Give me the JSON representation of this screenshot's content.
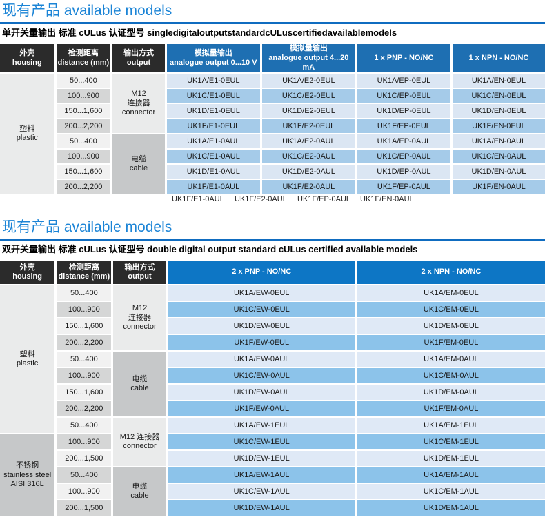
{
  "colors": {
    "accent": "#1b84d6",
    "rule": "#0f6cc0",
    "header_dark": "#2b2b2b",
    "table1_header_blue": "#1e6fb2",
    "table2_header_blue": "#0d76c5",
    "table1_row_light": "#dbe6f3",
    "table1_row_medium": "#a5cbe9",
    "table2_row_light": "#dfe9f6",
    "table2_row_medium": "#8cc3ea",
    "distance_light": "#f1f1f1",
    "distance_gray": "#d5d6d6",
    "span_cell_light": "#eaebeb",
    "span_cell_gray": "#c6c8c9"
  },
  "sections": [
    {
      "title": "现有产品 available models",
      "subtitle": "单开关量输出 标准 cULus 认证型号 singledigitaloutputstandardcULuscertifiedavailablemodels",
      "table": {
        "header": [
          {
            "style": "dark",
            "lines": [
              "外壳",
              "housing"
            ]
          },
          {
            "style": "dark",
            "lines": [
              "检测距离",
              "distance (mm)"
            ]
          },
          {
            "style": "dark",
            "lines": [
              "输出方式",
              "output"
            ]
          },
          {
            "style": "blue",
            "lines": [
              "模拟量输出",
              "analogue output 0...10 V"
            ]
          },
          {
            "style": "blue",
            "lines": [
              "模拟量输出",
              "analogue output 4...20 mA"
            ]
          },
          {
            "style": "blue",
            "lines": [
              "1 x PNP - NO/NC"
            ]
          },
          {
            "style": "blue",
            "lines": [
              "1 x NPN - NO/NC"
            ]
          }
        ],
        "rows": [
          [
            {
              "kind": "house",
              "shade": "light",
              "rowspan": 8,
              "lines": [
                "塑料",
                "plastic"
              ]
            },
            {
              "kind": "dist",
              "lines": [
                "50...400"
              ]
            },
            {
              "kind": "out",
              "shade": "light",
              "rowspan": 4,
              "lines": [
                "M12",
                "连接器",
                "connector"
              ]
            },
            {
              "kind": "model",
              "lines": [
                "UK1A/E1-0EUL"
              ]
            },
            {
              "kind": "model",
              "lines": [
                "UK1A/E2-0EUL"
              ]
            },
            {
              "kind": "model",
              "lines": [
                "UK1A/EP-0EUL"
              ]
            },
            {
              "kind": "model",
              "lines": [
                "UK1A/EN-0EUL"
              ]
            }
          ],
          [
            {
              "kind": "dist",
              "lines": [
                "100...900"
              ]
            },
            {
              "kind": "model",
              "lines": [
                "UK1C/E1-0EUL"
              ]
            },
            {
              "kind": "model",
              "lines": [
                "UK1C/E2-0EUL"
              ]
            },
            {
              "kind": "model",
              "lines": [
                "UK1C/EP-0EUL"
              ]
            },
            {
              "kind": "model",
              "lines": [
                "UK1C/EN-0EUL"
              ]
            }
          ],
          [
            {
              "kind": "dist",
              "lines": [
                "150...1,600"
              ]
            },
            {
              "kind": "model",
              "lines": [
                "UK1D/E1-0EUL"
              ]
            },
            {
              "kind": "model",
              "lines": [
                "UK1D/E2-0EUL"
              ]
            },
            {
              "kind": "model",
              "lines": [
                "UK1D/EP-0EUL"
              ]
            },
            {
              "kind": "model",
              "lines": [
                "UK1D/EN-0EUL"
              ]
            }
          ],
          [
            {
              "kind": "dist",
              "lines": [
                "200...2,200"
              ]
            },
            {
              "kind": "model",
              "lines": [
                "UK1F/E1-0EUL"
              ]
            },
            {
              "kind": "model",
              "lines": [
                "UK1F/E2-0EUL"
              ]
            },
            {
              "kind": "model",
              "lines": [
                "UK1F/EP-0EUL"
              ]
            },
            {
              "kind": "model",
              "lines": [
                "UK1F/EN-0EUL"
              ]
            }
          ],
          [
            {
              "kind": "dist",
              "lines": [
                "50...400"
              ]
            },
            {
              "kind": "out",
              "shade": "gray",
              "rowspan": 4,
              "lines": [
                "电缆",
                "cable"
              ]
            },
            {
              "kind": "model",
              "lines": [
                "UK1A/E1-0AUL"
              ]
            },
            {
              "kind": "model",
              "lines": [
                "UK1A/E2-0AUL"
              ]
            },
            {
              "kind": "model",
              "lines": [
                "UK1A/EP-0AUL"
              ]
            },
            {
              "kind": "model",
              "lines": [
                "UK1A/EN-0AUL"
              ]
            }
          ],
          [
            {
              "kind": "dist",
              "lines": [
                "100...900"
              ]
            },
            {
              "kind": "model",
              "lines": [
                "UK1C/E1-0AUL"
              ]
            },
            {
              "kind": "model",
              "lines": [
                "UK1C/E2-0AUL"
              ]
            },
            {
              "kind": "model",
              "lines": [
                "UK1C/EP-0AUL"
              ]
            },
            {
              "kind": "model",
              "lines": [
                "UK1C/EN-0AUL"
              ]
            }
          ],
          [
            {
              "kind": "dist",
              "lines": [
                "150...1,600"
              ]
            },
            {
              "kind": "model",
              "lines": [
                "UK1D/E1-0AUL"
              ]
            },
            {
              "kind": "model",
              "lines": [
                "UK1D/E2-0AUL"
              ]
            },
            {
              "kind": "model",
              "lines": [
                "UK1D/EP-0AUL"
              ]
            },
            {
              "kind": "model",
              "lines": [
                "UK1D/EN-0AUL"
              ]
            }
          ],
          [
            {
              "kind": "dist",
              "lines": [
                "200...2,200"
              ]
            },
            {
              "kind": "model",
              "lines": [
                "UK1F/E1-0AUL"
              ]
            },
            {
              "kind": "model",
              "lines": [
                "UK1F/E2-0AUL"
              ]
            },
            {
              "kind": "model",
              "lines": [
                "UK1F/EP-0AUL"
              ]
            },
            {
              "kind": "model",
              "lines": [
                "UK1F/EN-0AUL"
              ]
            }
          ]
        ]
      },
      "overflow_row": [
        "UK1F/E1-0AUL",
        "UK1F/E2-0AUL",
        "UK1F/EP-0AUL",
        "UK1F/EN-0AUL"
      ]
    },
    {
      "title": "现有产品 available models",
      "subtitle": "双开关量输出 标准 cULus 认证型号 double digital output standard cULus certified available models",
      "table": {
        "header": [
          {
            "style": "dark",
            "lines": [
              "外壳",
              "housing"
            ]
          },
          {
            "style": "dark",
            "lines": [
              "检测距离",
              "distance (mm)"
            ]
          },
          {
            "style": "dark",
            "lines": [
              "输出方式",
              "output"
            ]
          },
          {
            "style": "blue",
            "lines": [
              "2 x PNP - NO/NC"
            ]
          },
          {
            "style": "blue",
            "lines": [
              "2 x NPN - NO/NC"
            ]
          }
        ],
        "rows": [
          [
            {
              "kind": "house",
              "shade": "light",
              "rowspan": 9,
              "lines": [
                "塑料",
                "plastic"
              ]
            },
            {
              "kind": "dist",
              "lines": [
                "50...400"
              ]
            },
            {
              "kind": "out",
              "shade": "light",
              "rowspan": 4,
              "lines": [
                "M12",
                "连接器",
                "connector"
              ]
            },
            {
              "kind": "model",
              "lines": [
                "UK1A/EW-0EUL"
              ]
            },
            {
              "kind": "model",
              "lines": [
                "UK1A/EM-0EUL"
              ]
            }
          ],
          [
            {
              "kind": "dist",
              "lines": [
                "100...900"
              ]
            },
            {
              "kind": "model",
              "lines": [
                "UK1C/EW-0EUL"
              ]
            },
            {
              "kind": "model",
              "lines": [
                "UK1C/EM-0EUL"
              ]
            }
          ],
          [
            {
              "kind": "dist",
              "lines": [
                "150...1,600"
              ]
            },
            {
              "kind": "model",
              "lines": [
                "UK1D/EW-0EUL"
              ]
            },
            {
              "kind": "model",
              "lines": [
                "UK1D/EM-0EUL"
              ]
            }
          ],
          [
            {
              "kind": "dist",
              "lines": [
                "200...2,200"
              ]
            },
            {
              "kind": "model",
              "lines": [
                "UK1F/EW-0EUL"
              ]
            },
            {
              "kind": "model",
              "lines": [
                "UK1F/EM-0EUL"
              ]
            }
          ],
          [
            {
              "kind": "dist",
              "lines": [
                "50...400"
              ]
            },
            {
              "kind": "out",
              "shade": "gray",
              "rowspan": 4,
              "lines": [
                "电缆",
                "cable"
              ]
            },
            {
              "kind": "model",
              "lines": [
                "UK1A/EW-0AUL"
              ]
            },
            {
              "kind": "model",
              "lines": [
                "UK1A/EM-0AUL"
              ]
            }
          ],
          [
            {
              "kind": "dist",
              "lines": [
                "100...900"
              ]
            },
            {
              "kind": "model",
              "lines": [
                "UK1C/EW-0AUL"
              ]
            },
            {
              "kind": "model",
              "lines": [
                "UK1C/EM-0AUL"
              ]
            }
          ],
          [
            {
              "kind": "dist",
              "lines": [
                "150...1,600"
              ]
            },
            {
              "kind": "model",
              "lines": [
                "UK1D/EW-0AUL"
              ]
            },
            {
              "kind": "model",
              "lines": [
                "UK1D/EM-0AUL"
              ]
            }
          ],
          [
            {
              "kind": "dist",
              "lines": [
                "200...2,200"
              ]
            },
            {
              "kind": "model",
              "lines": [
                "UK1F/EW-0AUL"
              ]
            },
            {
              "kind": "model",
              "lines": [
                "UK1F/EM-0AUL"
              ]
            }
          ],
          [
            {
              "kind": "dist",
              "lines": [
                "50...400"
              ]
            },
            {
              "kind": "out",
              "shade": "light",
              "rowspan": 3,
              "lines": [
                "M12 连接器",
                "connector"
              ]
            },
            {
              "kind": "model",
              "lines": [
                "UK1A/EW-1EUL"
              ]
            },
            {
              "kind": "model",
              "lines": [
                "UK1A/EM-1EUL"
              ]
            }
          ],
          [
            {
              "kind": "house",
              "shade": "gray",
              "rowspan": 5,
              "lines": [
                "不锈钢",
                "stainless steel",
                "AISI 316L"
              ]
            },
            {
              "kind": "dist",
              "lines": [
                "100...900"
              ]
            },
            {
              "kind": "model",
              "lines": [
                "UK1C/EW-1EUL"
              ]
            },
            {
              "kind": "model",
              "lines": [
                "UK1C/EM-1EUL"
              ]
            }
          ],
          [
            {
              "kind": "dist",
              "lines": [
                "200...1,500"
              ]
            },
            {
              "kind": "model",
              "lines": [
                "UK1D/EW-1EUL"
              ]
            },
            {
              "kind": "model",
              "lines": [
                "UK1D/EM-1EUL"
              ]
            }
          ],
          [
            {
              "kind": "dist",
              "lines": [
                "50...400"
              ]
            },
            {
              "kind": "out",
              "shade": "gray",
              "rowspan": 3,
              "lines": [
                "电缆",
                "cable"
              ]
            },
            {
              "kind": "model",
              "lines": [
                "UK1A/EW-1AUL"
              ]
            },
            {
              "kind": "model",
              "lines": [
                "UK1A/EM-1AUL"
              ]
            }
          ],
          [
            {
              "kind": "dist",
              "lines": [
                "100...900"
              ]
            },
            {
              "kind": "model",
              "lines": [
                "UK1C/EW-1AUL"
              ]
            },
            {
              "kind": "model",
              "lines": [
                "UK1C/EM-1AUL"
              ]
            }
          ],
          [
            {
              "kind": "dist",
              "lines": [
                "200...1,500"
              ]
            },
            {
              "kind": "model",
              "lines": [
                "UK1D/EW-1AUL"
              ]
            },
            {
              "kind": "model",
              "lines": [
                "UK1D/EM-1AUL"
              ]
            }
          ]
        ]
      }
    }
  ]
}
